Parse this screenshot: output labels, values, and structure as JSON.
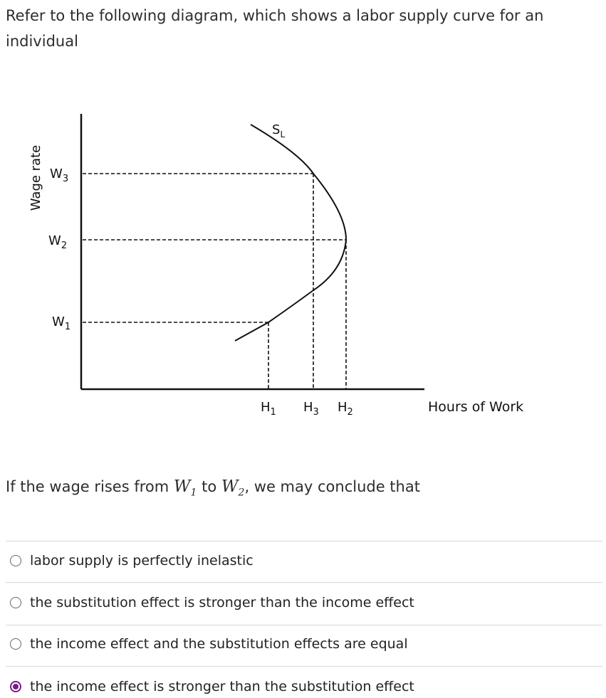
{
  "title": "Refer to the following diagram, which shows a labor supply curve for an individual",
  "diagram": {
    "y_axis_label": "Wage rate",
    "x_axis_label": "Hours of Work",
    "curve_label": "S",
    "curve_label_sub": "L",
    "wage_levels": [
      {
        "label": "W",
        "sub": "3"
      },
      {
        "label": "W",
        "sub": "2"
      },
      {
        "label": "W",
        "sub": "1"
      }
    ],
    "hour_levels": [
      {
        "label": "H",
        "sub": "1"
      },
      {
        "label": "H",
        "sub": "3"
      },
      {
        "label": "H",
        "sub": "2"
      }
    ]
  },
  "question": {
    "prefix": "If the wage rises from ",
    "from_var": "W",
    "from_sub": "1",
    "mid": " to ",
    "to_var": "W",
    "to_sub": "2",
    "suffix": ", we may conclude that"
  },
  "options": [
    {
      "label": "labor supply is perfectly inelastic",
      "selected": false
    },
    {
      "label": "the substitution effect is stronger than the income effect",
      "selected": false
    },
    {
      "label": "the income effect and the substitution effects are equal",
      "selected": false
    },
    {
      "label": "the income effect is stronger than the substitution effect",
      "selected": true
    }
  ],
  "colors": {
    "selected_radio": "#7a1a8a",
    "separator": "#d8d8d8"
  }
}
